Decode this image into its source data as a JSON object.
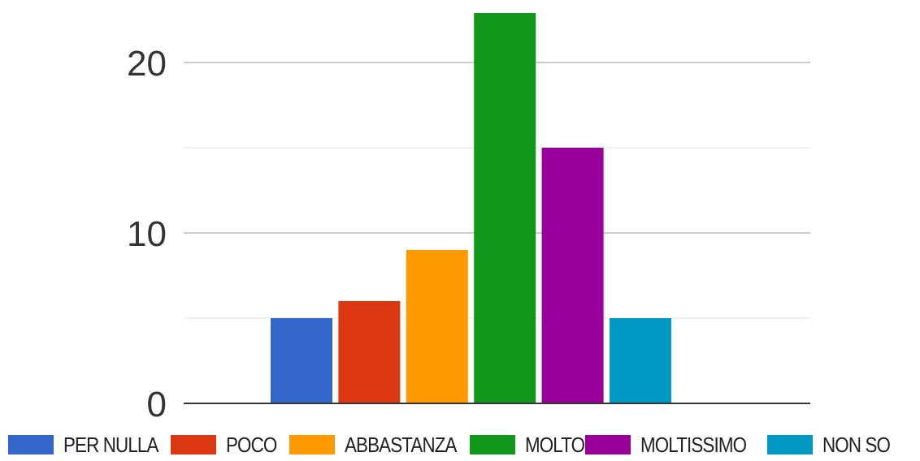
{
  "chart_data": {
    "type": "bar",
    "categories": [
      "PER NULLA",
      "POCO",
      "ABBASTANZA",
      "MOLTO",
      "MOLTISSIMO",
      "NON SO"
    ],
    "values": [
      5,
      6,
      9,
      23,
      15,
      5
    ],
    "colors": [
      "#3366cc",
      "#dc3912",
      "#ff9900",
      "#109618",
      "#990099",
      "#0099c6"
    ],
    "ylim": [
      0,
      20
    ],
    "yticks": [
      "0",
      "10",
      "20"
    ],
    "grid": true,
    "legend_position": "bottom",
    "title": "",
    "xlabel": "",
    "ylabel": ""
  }
}
